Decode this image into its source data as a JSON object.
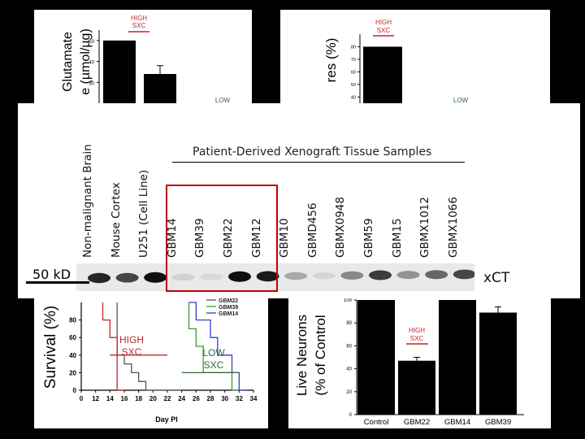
{
  "colors": {
    "high": "#c1272d",
    "low": "#2e6b3a",
    "box": "#c00000",
    "gbm22": "#555555",
    "gbm39": "#3a9a2c",
    "gbm14": "#3a3ad6"
  },
  "top_left": {
    "ylabel_line1": "Glutamate",
    "ylabel_line2": "e (µmol/µg)",
    "high_label": [
      "HIGH",
      "SXC"
    ],
    "low_label": "LOW",
    "chart_data": {
      "type": "bar",
      "ylim": [
        20,
        55
      ],
      "yticks": [
        "50",
        "40",
        "30"
      ],
      "values": [
        50,
        34
      ],
      "errors": [
        0,
        4
      ]
    }
  },
  "top_right": {
    "ylabel": "res (%)",
    "high_label": [
      "HIGH",
      "SXC"
    ],
    "low_label": "LOW",
    "chart_data": {
      "type": "bar",
      "ylim": [
        35,
        90
      ],
      "yticks": [
        "80",
        "70",
        "60",
        "50",
        "40"
      ],
      "values": [
        80
      ]
    }
  },
  "blot": {
    "title": "Patient-Derived Xenograft Tissue Samples",
    "marker": "50 kD",
    "protein": "xCT",
    "lanes": [
      {
        "label": "Non-malignant Brain",
        "intensity": 0.9
      },
      {
        "label": "Mouse Cortex",
        "intensity": 0.75
      },
      {
        "label": "U251 (Cell Line)",
        "intensity": 1.0
      },
      {
        "label": "GBM14",
        "intensity": 0.12
      },
      {
        "label": "GBM39",
        "intensity": 0.08
      },
      {
        "label": "GBM22",
        "intensity": 1.0
      },
      {
        "label": "GBM12",
        "intensity": 0.95
      },
      {
        "label": "GBM10",
        "intensity": 0.3
      },
      {
        "label": "GBMD456",
        "intensity": 0.1
      },
      {
        "label": "GBMX0948",
        "intensity": 0.45
      },
      {
        "label": "GBM59",
        "intensity": 0.8
      },
      {
        "label": "GBM15",
        "intensity": 0.4
      },
      {
        "label": "GBMX1012",
        "intensity": 0.6
      },
      {
        "label": "GBMX1066",
        "intensity": 0.75
      }
    ]
  },
  "survival": {
    "ylabel": "Survival (%)",
    "xlabel": "Day PI",
    "xticks": [
      "0",
      "12",
      "14",
      "16",
      "18",
      "20",
      "22",
      "24",
      "26",
      "28",
      "30",
      "32",
      "34"
    ],
    "yticks": [
      "80",
      "60",
      "40",
      "20",
      "0"
    ],
    "legend": [
      "GBM22",
      "GBM39",
      "GBM14"
    ],
    "high_label": [
      "HIGH",
      "SXC"
    ],
    "low_label": [
      "LOW",
      "SXC"
    ],
    "chart_data": {
      "type": "line",
      "ylim": [
        0,
        100
      ],
      "series": [
        {
          "name": "GBM22",
          "points": [
            [
              15,
              100
            ],
            [
              15,
              40
            ],
            [
              16,
              40
            ],
            [
              16,
              30
            ],
            [
              17,
              30
            ],
            [
              17,
              20
            ],
            [
              18,
              20
            ],
            [
              18,
              10
            ],
            [
              19,
              10
            ],
            [
              19,
              0
            ],
            [
              24,
              0
            ]
          ]
        },
        {
          "name": "GBM39",
          "points": [
            [
              25,
              100
            ],
            [
              25,
              70
            ],
            [
              26,
              70
            ],
            [
              26,
              50
            ],
            [
              27,
              50
            ],
            [
              27,
              20
            ],
            [
              31,
              20
            ],
            [
              31,
              0
            ],
            [
              32,
              0
            ]
          ]
        },
        {
          "name": "GBM14",
          "points": [
            [
              25,
              100
            ],
            [
              26,
              100
            ],
            [
              26,
              80
            ],
            [
              28,
              80
            ],
            [
              28,
              60
            ],
            [
              29,
              60
            ],
            [
              29,
              40
            ],
            [
              31,
              40
            ],
            [
              31,
              20
            ],
            [
              32,
              20
            ],
            [
              32,
              0
            ],
            [
              33,
              0
            ]
          ]
        },
        {
          "name": "HIGH",
          "points": [
            [
              13,
              100
            ],
            [
              13,
              80
            ],
            [
              14,
              80
            ],
            [
              14,
              60
            ],
            [
              15,
              60
            ],
            [
              15,
              0
            ],
            [
              16,
              0
            ]
          ]
        }
      ]
    }
  },
  "neurons": {
    "ylabel_line1": "Live Neurons",
    "ylabel_line2": "(% of Control",
    "high_label": [
      "HIGH",
      "SXC"
    ],
    "yticks": [
      "100",
      "80",
      "60",
      "40",
      "20",
      "0"
    ],
    "chart_data": {
      "type": "bar",
      "categories": [
        "Control",
        "GBM22",
        "GBM14",
        "GBM39"
      ],
      "values": [
        100,
        47,
        100,
        89
      ],
      "errors": [
        0,
        3,
        0,
        5
      ],
      "ylim": [
        0,
        100
      ]
    }
  }
}
